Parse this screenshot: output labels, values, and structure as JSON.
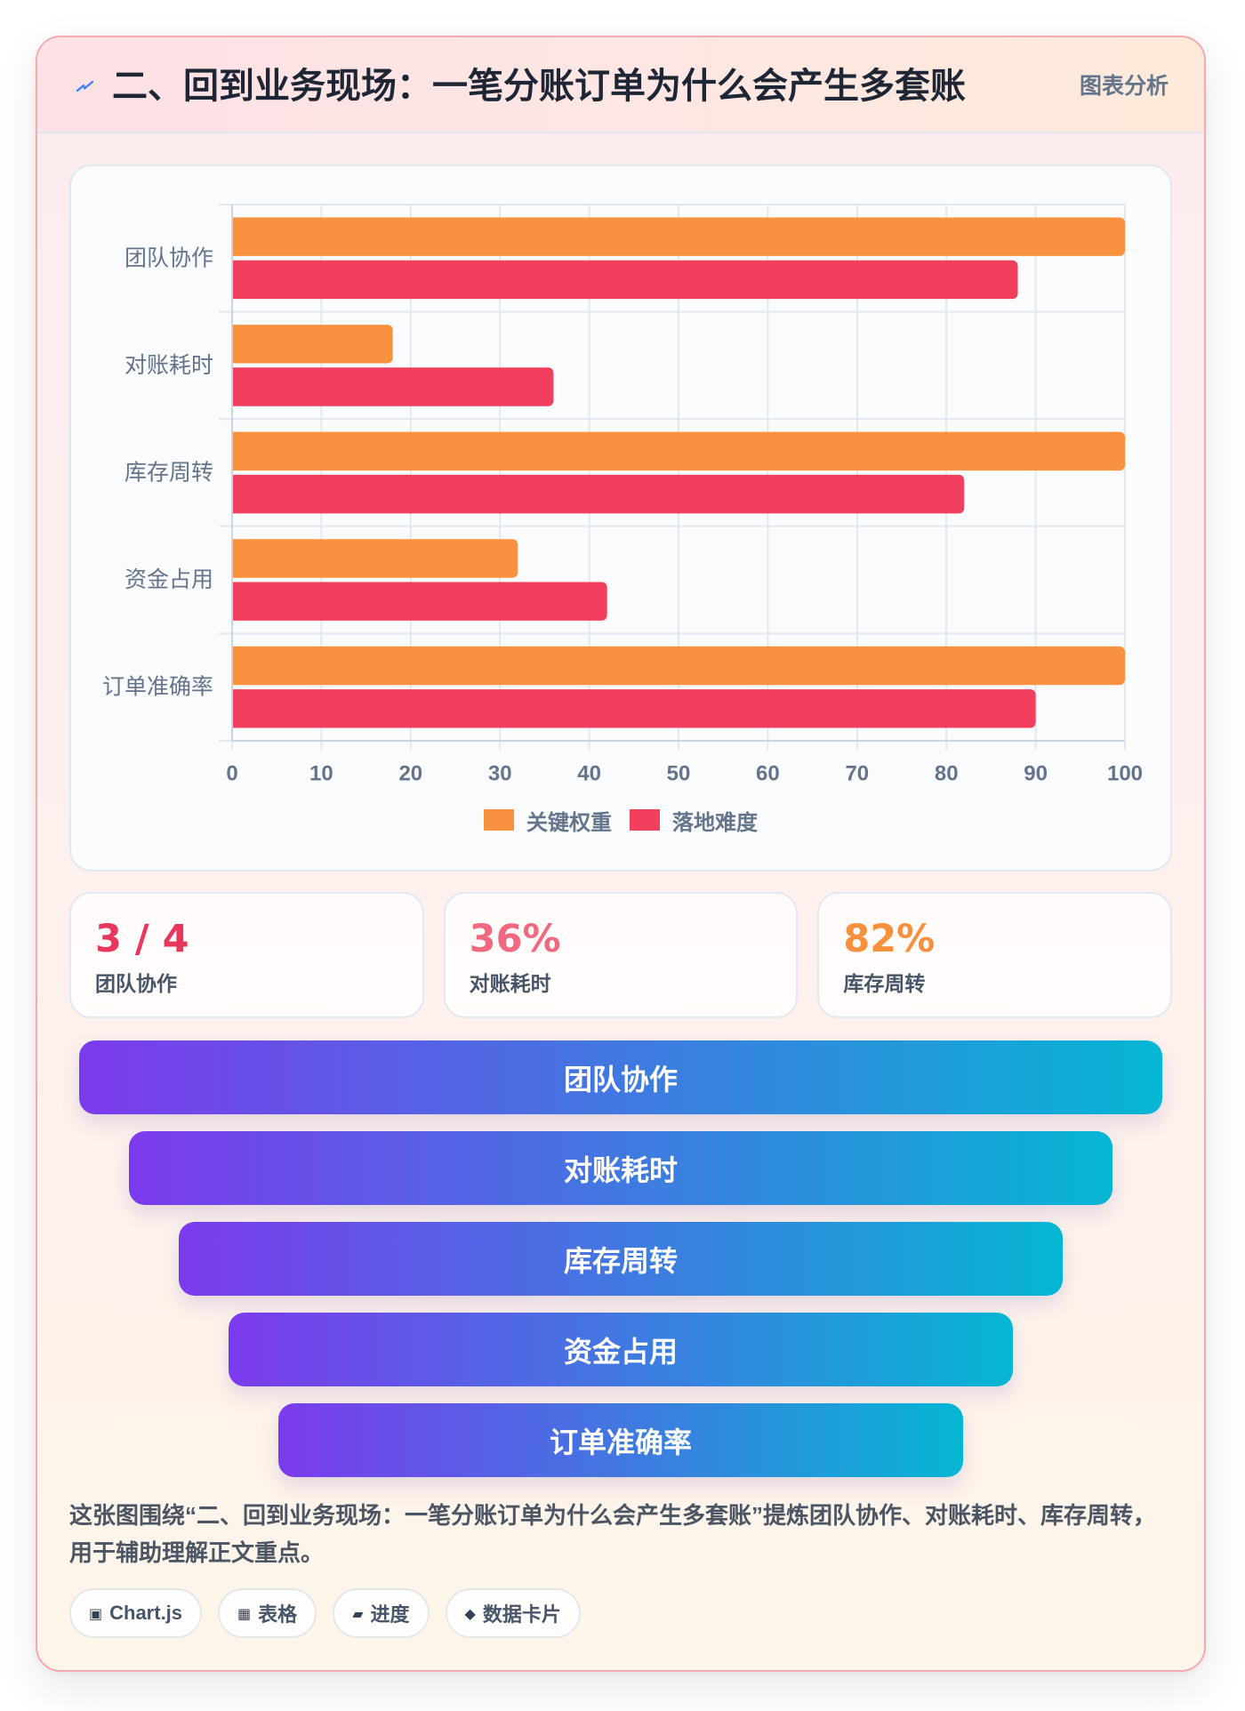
{
  "header": {
    "icon": "lightning-icon",
    "title": "二、回到业务现场：一笔分账订单为什么会产生多套账",
    "badge": "图表分析"
  },
  "chart_data": {
    "type": "bar",
    "orientation": "horizontal",
    "categories": [
      "团队协作",
      "对账耗时",
      "库存周转",
      "资金占用",
      "订单准确率"
    ],
    "series": [
      {
        "name": "关键权重",
        "values": [
          100,
          18,
          100,
          32,
          100
        ],
        "color": "#f9923f"
      },
      {
        "name": "落地难度",
        "values": [
          88,
          36,
          82,
          42,
          90
        ],
        "color": "#f23f5e"
      }
    ],
    "xlim": [
      0,
      100
    ],
    "xticks": [
      0,
      10,
      20,
      30,
      40,
      50,
      60,
      70,
      80,
      90,
      100
    ],
    "grid": true,
    "legend": "bottom"
  },
  "stats": [
    {
      "value": "3 / 4",
      "label": "团队协作",
      "color": "#e8365d"
    },
    {
      "value": "36%",
      "label": "对账耗时",
      "color": "#f1697f"
    },
    {
      "value": "82%",
      "label": "库存周转",
      "color": "#f7913d"
    }
  ],
  "funnel": {
    "steps": [
      "团队协作",
      "对账耗时",
      "库存周转",
      "资金占用",
      "订单准确率"
    ],
    "gradient": [
      "#7c3aed",
      "#06b6d4"
    ]
  },
  "description": "这张图围绕“二、回到业务现场：一笔分账订单为什么会产生多套账”提炼团队协作、对账耗时、库存周转，用于辅助理解正文重点。",
  "tags": [
    {
      "icon": "chart-icon",
      "glyph": "▣",
      "label": "Chart.js"
    },
    {
      "icon": "table-icon",
      "glyph": "▦",
      "label": "表格"
    },
    {
      "icon": "progress-icon",
      "glyph": "▰",
      "label": "进度"
    },
    {
      "icon": "diamond-icon",
      "glyph": "◆",
      "label": "数据卡片"
    }
  ]
}
